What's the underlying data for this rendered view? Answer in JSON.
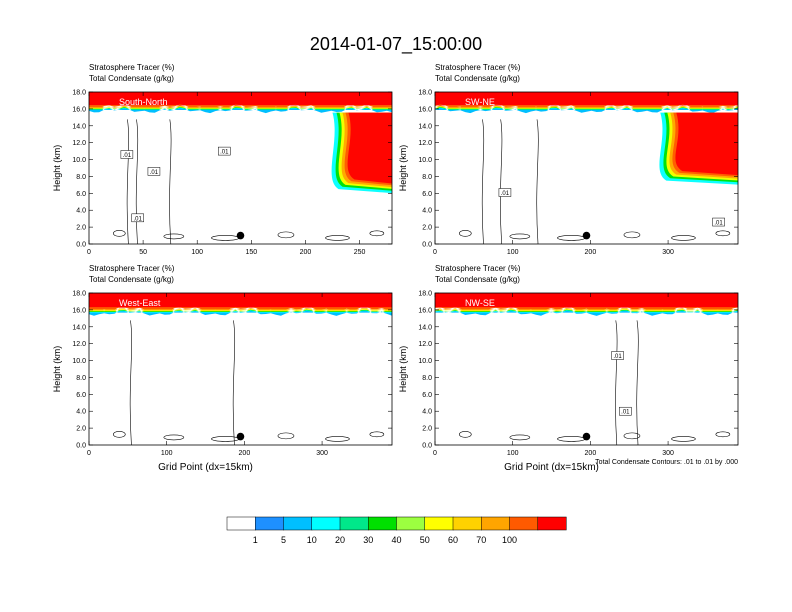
{
  "figure_title": "2014-01-07_15:00:00",
  "panel_title_line1": "Stratosphere Tracer   (%)",
  "panel_title_line2": "Total Condensate   (g/kg)",
  "contour_note": "Total Condensate Contours: .01 to .01 by .000",
  "colors": {
    "fill_levels": [
      "#ffffff",
      "#1e90ff",
      "#00bfff",
      "#00ffff",
      "#00e88a",
      "#00e000",
      "#9cff40",
      "#ffff00",
      "#ffd200",
      "#ffa500",
      "#ff5a00",
      "#ff0000"
    ],
    "contour": "#000000",
    "marker": "#000000"
  },
  "colorbar": {
    "tick_labels": [
      "1",
      "5",
      "10",
      "20",
      "30",
      "40",
      "50",
      "60",
      "70",
      "100"
    ]
  },
  "chart_data": [
    {
      "type": "heatmap",
      "panel_label": "South-North",
      "ylabel": "Height (km)",
      "xlabel": "",
      "xlim": [
        0,
        280
      ],
      "ylim": [
        0,
        18
      ],
      "x_ticks": [
        0,
        50,
        100,
        150,
        200,
        250
      ],
      "y_tick_labels": [
        "0.0",
        "2.0",
        "4.0",
        "6.0",
        "8.0",
        "10.0",
        "12.0",
        "14.0",
        "16.0",
        "18.0"
      ],
      "tropopause_km": 15.8,
      "stratosphere_top_km": 18,
      "intrusion": {
        "x0": 225,
        "x1": 280,
        "bottom_km": 6.5
      },
      "marker": {
        "x": 140,
        "height_km": 1.0
      },
      "contour_labels": [
        {
          "text": ".01",
          "x": 35,
          "height_km": 10.6
        },
        {
          "text": ".01",
          "x": 60,
          "height_km": 8.6
        },
        {
          "text": ".01",
          "x": 125,
          "height_km": 11.0
        },
        {
          "text": ".01",
          "x": 45,
          "height_km": 3.1
        }
      ]
    },
    {
      "type": "heatmap",
      "panel_label": "SW-NE",
      "ylabel": "Height (km)",
      "xlabel": "",
      "xlim": [
        0,
        390
      ],
      "ylim": [
        0,
        18
      ],
      "x_ticks": [
        0,
        100,
        200,
        300
      ],
      "y_tick_labels": [
        "0.0",
        "2.0",
        "4.0",
        "6.0",
        "8.0",
        "10.0",
        "12.0",
        "14.0",
        "16.0",
        "18.0"
      ],
      "tropopause_km": 15.8,
      "stratosphere_top_km": 18,
      "intrusion": {
        "x0": 290,
        "x1": 390,
        "bottom_km": 7.5
      },
      "marker": {
        "x": 195,
        "height_km": 1.0
      },
      "contour_labels": [
        {
          "text": ".01",
          "x": 90,
          "height_km": 6.1
        },
        {
          "text": ".01",
          "x": 365,
          "height_km": 2.6
        }
      ]
    },
    {
      "type": "heatmap",
      "panel_label": "West-East",
      "ylabel": "Height (km)",
      "xlabel": "Grid Point (dx=15km)",
      "xlim": [
        0,
        390
      ],
      "ylim": [
        0,
        18
      ],
      "x_ticks": [
        0,
        100,
        200,
        300
      ],
      "y_tick_labels": [
        "0.0",
        "2.0",
        "4.0",
        "6.0",
        "8.0",
        "10.0",
        "12.0",
        "14.0",
        "16.0",
        "18.0"
      ],
      "tropopause_km": 15.6,
      "stratosphere_top_km": 18,
      "intrusion": null,
      "marker": {
        "x": 195,
        "height_km": 1.0
      },
      "contour_labels": []
    },
    {
      "type": "heatmap",
      "panel_label": "NW-SE",
      "ylabel": "Height (km)",
      "xlabel": "Grid Point (dx=15km)",
      "xlim": [
        0,
        390
      ],
      "ylim": [
        0,
        18
      ],
      "x_ticks": [
        0,
        100,
        200,
        300
      ],
      "y_tick_labels": [
        "0.0",
        "2.0",
        "4.0",
        "6.0",
        "8.0",
        "10.0",
        "12.0",
        "14.0",
        "16.0",
        "18.0"
      ],
      "tropopause_km": 15.6,
      "stratosphere_top_km": 18,
      "intrusion": null,
      "marker": {
        "x": 195,
        "height_km": 1.0
      },
      "contour_labels": [
        {
          "text": ".01",
          "x": 235,
          "height_km": 10.6
        },
        {
          "text": ".01",
          "x": 245,
          "height_km": 4.0
        }
      ]
    }
  ]
}
